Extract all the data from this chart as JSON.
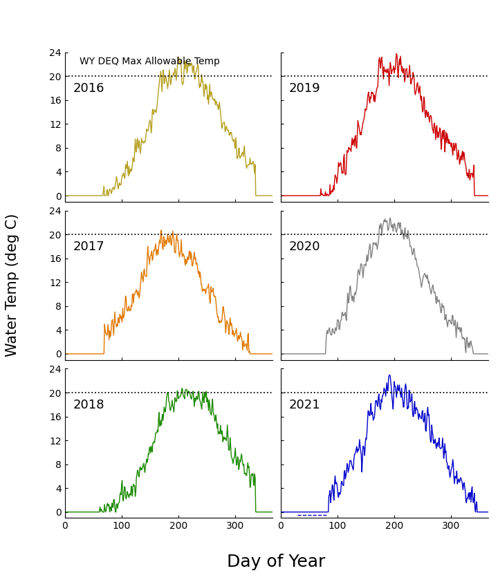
{
  "years": [
    "2016",
    "2017",
    "2018",
    "2019",
    "2020",
    "2021"
  ],
  "colors": [
    "#b5a020",
    "#e07800",
    "#1a8a00",
    "#cc0000",
    "#808080",
    "#0000cc"
  ],
  "wydeq_max": 20,
  "wydeq_label": "WY DEQ Max Allowable Temp",
  "xlabel": "Day of Year",
  "ylabel": "Water Temp (deg C)",
  "ylim": [
    -1,
    24
  ],
  "xlim": [
    0,
    365
  ],
  "yticks": [
    0,
    4,
    8,
    12,
    16,
    20,
    24
  ],
  "xticks": [
    0,
    100,
    200,
    300
  ],
  "label_fontsize": 15,
  "tick_fontsize": 10,
  "year_label_fontsize": 13,
  "annot_fontsize": 10,
  "linewidth": 1.0,
  "background_color": "#ffffff"
}
